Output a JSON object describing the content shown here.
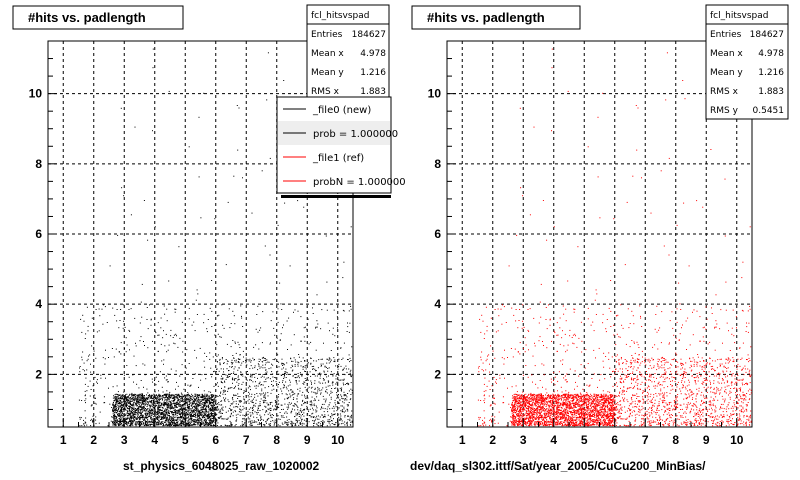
{
  "colors": {
    "new": "#000000",
    "ref": "#ff0000",
    "grid": "#000000"
  },
  "legend": {
    "entries": [
      {
        "label": "_file0 (new)",
        "color": "#000000"
      },
      {
        "label": "prob = 1.000000",
        "color": "#000000"
      },
      {
        "label": "_file1 (ref)",
        "color": "#ff0000"
      },
      {
        "label": "probN = 1.000000",
        "color": "#ff0000"
      }
    ]
  },
  "chart_data": [
    {
      "type": "scatter",
      "title": "#hits vs. padlength",
      "xlabel": "st_physics_6048025_raw_1020002",
      "ylabel": "",
      "xlim": [
        0.5,
        10.5
      ],
      "ylim": [
        0.5,
        11.5
      ],
      "xticks": [
        "1",
        "2",
        "3",
        "4",
        "5",
        "6",
        "7",
        "8",
        "9",
        "10"
      ],
      "yticks": [
        "2",
        "4",
        "6",
        "8",
        "10"
      ],
      "grid": true,
      "marker_color": "#000000",
      "stats": {
        "name": "fcl_hitsvspad",
        "rows": [
          {
            "label": "Entries",
            "value": "184627"
          },
          {
            "label": "Mean x",
            "value": "4.978"
          },
          {
            "label": "Mean y",
            "value": "1.216"
          },
          {
            "label": "RMS x",
            "value": "1.883"
          }
        ]
      },
      "density": [
        {
          "x": [
            2.6,
            6.0
          ],
          "y": [
            0.55,
            1.45
          ],
          "level": "dense"
        },
        {
          "x": [
            6.0,
            10.5
          ],
          "y": [
            0.55,
            2.5
          ],
          "level": "medium"
        },
        {
          "x": [
            1.5,
            10.5
          ],
          "y": [
            0.55,
            4.0
          ],
          "level": "sparse"
        },
        {
          "x": [
            2.0,
            10.5
          ],
          "y": [
            4.0,
            11.5
          ],
          "level": "rare"
        }
      ]
    },
    {
      "type": "scatter",
      "title": "#hits vs. padlength",
      "xlabel": "dev/daq_sl302.ittf/Sat/year_2005/CuCu200_MinBias/",
      "ylabel": "",
      "xlim": [
        0.5,
        10.5
      ],
      "ylim": [
        0.5,
        11.5
      ],
      "xticks": [
        "1",
        "2",
        "3",
        "4",
        "5",
        "6",
        "7",
        "8",
        "9",
        "10"
      ],
      "yticks": [
        "2",
        "4",
        "6",
        "8",
        "10"
      ],
      "grid": true,
      "marker_color": "#ff0000",
      "stats": {
        "name": "fcl_hitsvspad",
        "rows": [
          {
            "label": "Entries",
            "value": "184627"
          },
          {
            "label": "Mean x",
            "value": "4.978"
          },
          {
            "label": "Mean y",
            "value": "1.216"
          },
          {
            "label": "RMS x",
            "value": "1.883"
          },
          {
            "label": "RMS y",
            "value": "0.5451"
          }
        ]
      },
      "density": [
        {
          "x": [
            2.6,
            6.0
          ],
          "y": [
            0.55,
            1.45
          ],
          "level": "dense"
        },
        {
          "x": [
            6.0,
            10.5
          ],
          "y": [
            0.55,
            2.5
          ],
          "level": "medium"
        },
        {
          "x": [
            1.5,
            10.5
          ],
          "y": [
            0.55,
            4.0
          ],
          "level": "sparse"
        },
        {
          "x": [
            2.0,
            10.5
          ],
          "y": [
            4.0,
            11.5
          ],
          "level": "rare"
        }
      ]
    }
  ]
}
